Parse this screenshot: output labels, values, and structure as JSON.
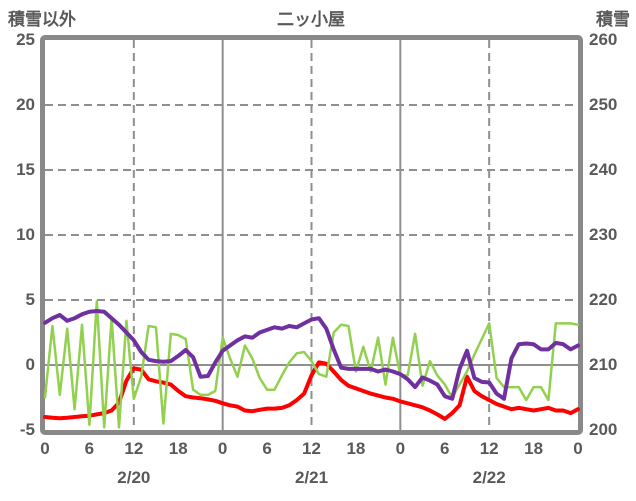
{
  "header": {
    "left_axis_title": "積雪以外",
    "station_title": "二ッ小屋",
    "right_axis_title": "積雪"
  },
  "chart_data": {
    "type": "line",
    "title": "二ッ小屋",
    "x_unit": "hour",
    "x_max": 72,
    "x_tick_step": 6,
    "x_tick_labels": [
      "0",
      "6",
      "12",
      "18",
      "0",
      "6",
      "12",
      "18",
      "0",
      "6",
      "12",
      "18",
      "0"
    ],
    "dates": [
      {
        "label": "2/20",
        "center_hour": 12
      },
      {
        "label": "2/21",
        "center_hour": 36
      },
      {
        "label": "2/22",
        "center_hour": 60
      }
    ],
    "left_axis": {
      "title": "積雪以外",
      "ticks": [
        25,
        20,
        15,
        10,
        5,
        0,
        -5
      ],
      "range": [
        -5,
        25
      ]
    },
    "right_axis": {
      "title": "積雪",
      "ticks": [
        260,
        250,
        240,
        230,
        220,
        210,
        200
      ],
      "range": [
        200,
        260
      ]
    },
    "grid": {
      "h_dashed_at": [
        20,
        15,
        10,
        5
      ],
      "h_solid_at": [
        0
      ],
      "v_solid_at_hours": [
        24,
        48
      ],
      "v_dashed_at_hours": [
        12,
        36,
        60
      ]
    },
    "colors": {
      "frame": "#898989",
      "grid": "#8F8F8F",
      "text": "#595959",
      "red": "#FF0000",
      "green": "#92D050",
      "purple": "#7030A0"
    },
    "series": [
      {
        "name": "red-line",
        "axis": "left",
        "color": "#FF0000",
        "width": 4,
        "values": [
          -4.0,
          -4.05,
          -4.1,
          -4.05,
          -4.0,
          -3.95,
          -3.9,
          -3.8,
          -3.7,
          -3.5,
          -2.9,
          -1.2,
          -0.25,
          -0.35,
          -1.1,
          -1.25,
          -1.35,
          -1.5,
          -2.0,
          -2.4,
          -2.5,
          -2.55,
          -2.65,
          -2.75,
          -2.95,
          -3.1,
          -3.2,
          -3.5,
          -3.55,
          -3.45,
          -3.35,
          -3.35,
          -3.3,
          -3.1,
          -2.7,
          -2.2,
          -0.8,
          0.2,
          0.1,
          -0.5,
          -1.15,
          -1.6,
          -1.8,
          -2.0,
          -2.2,
          -2.35,
          -2.5,
          -2.6,
          -2.8,
          -2.95,
          -3.1,
          -3.25,
          -3.5,
          -3.8,
          -4.15,
          -3.7,
          -3.1,
          -0.9,
          -2.0,
          -2.4,
          -2.7,
          -3.0,
          -3.2,
          -3.4,
          -3.3,
          -3.4,
          -3.5,
          -3.4,
          -3.3,
          -3.5,
          -3.5,
          -3.7,
          -3.4
        ]
      },
      {
        "name": "green-line",
        "axis": "left",
        "color": "#92D050",
        "width": 2.5,
        "values": [
          -2.5,
          3.0,
          -2.3,
          2.8,
          -3.4,
          3.1,
          -4.6,
          4.9,
          -4.8,
          3.6,
          -4.8,
          3.4,
          -2.6,
          -0.9,
          3.0,
          2.9,
          -4.5,
          2.4,
          2.3,
          2.0,
          -1.9,
          -2.3,
          -2.3,
          -2.0,
          2.1,
          0.5,
          -0.9,
          1.5,
          0.5,
          -1.0,
          -1.9,
          -1.9,
          -0.8,
          0.2,
          0.9,
          1.0,
          0.3,
          -0.7,
          -0.9,
          2.5,
          3.1,
          3.0,
          -0.5,
          1.4,
          -0.5,
          2.1,
          -1.5,
          2.1,
          -0.8,
          -0.8,
          2.4,
          -1.6,
          0.3,
          -0.8,
          -1.5,
          -2.5,
          -1.5,
          -0.5,
          0.8,
          2.0,
          3.2,
          -1.0,
          -1.7,
          -1.7,
          -1.7,
          -2.7,
          -1.7,
          -1.7,
          -2.7,
          3.2,
          3.2,
          3.2,
          3.1
        ]
      },
      {
        "name": "purple-line",
        "axis": "right",
        "color": "#7030A0",
        "width": 4,
        "values": [
          216.5,
          217.2,
          217.7,
          216.8,
          217.2,
          217.8,
          218.2,
          218.3,
          218.2,
          217.2,
          216.2,
          215.0,
          213.8,
          212.0,
          210.8,
          210.6,
          210.5,
          210.6,
          211.4,
          212.3,
          211.2,
          208.2,
          208.3,
          210.4,
          212.2,
          213.0,
          213.8,
          214.4,
          214.2,
          215.0,
          215.4,
          215.8,
          215.6,
          216.0,
          215.8,
          216.4,
          217.0,
          217.2,
          215.6,
          212.4,
          209.6,
          209.4,
          209.4,
          209.4,
          209.4,
          209.0,
          209.3,
          209.0,
          208.6,
          207.8,
          206.6,
          208.1,
          207.6,
          207.0,
          205.2,
          204.8,
          209.4,
          212.2,
          208.0,
          207.4,
          207.3,
          205.6,
          204.8,
          211.0,
          213.2,
          213.3,
          213.2,
          212.4,
          212.4,
          213.4,
          213.2,
          212.4,
          213.0
        ]
      }
    ]
  }
}
